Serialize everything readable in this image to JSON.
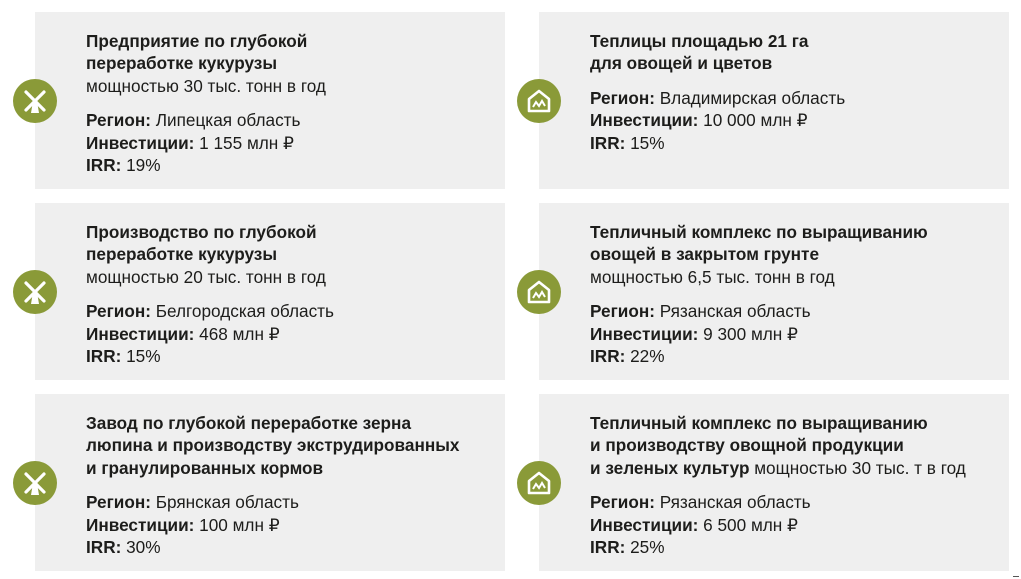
{
  "labels": {
    "region": "Регион:",
    "investment": "Инвестиции:",
    "irr": "IRR:"
  },
  "icons": {
    "mill": "windmill-icon",
    "greenhouse": "greenhouse-icon"
  },
  "colors": {
    "accent": "#8a9a38",
    "card_bg": "#efefef"
  },
  "projects": [
    {
      "icon": "windmill-icon",
      "title": "Предприятие по глубокой переработке кукурузы",
      "capacity": "мощностью 30 тыс. тонн в год",
      "region": "Липецкая область",
      "investment": "1 155 млн ₽",
      "irr": "19%"
    },
    {
      "icon": "greenhouse-icon",
      "title": "Теплицы площадью 21 га для овощей и цветов",
      "capacity": "",
      "region": "Владимирская область",
      "investment": "10 000 млн ₽",
      "irr": "15%"
    },
    {
      "icon": "windmill-icon",
      "title": "Производство по глубокой переработке кукурузы",
      "capacity": "мощностью 20 тыс. тонн в год",
      "region": "Белгородская область",
      "investment": "468 млн ₽",
      "irr": "15%"
    },
    {
      "icon": "greenhouse-icon",
      "title": "Тепличный комплекс по выращиванию овощей в закрытом грунте",
      "capacity": "мощностью 6,5 тыс. тонн в год",
      "region": "Рязанская область",
      "investment": "9 300 млн ₽",
      "irr": "22%"
    },
    {
      "icon": "windmill-icon",
      "title": "Завод по глубокой переработке зерна люпина и производству экструдированных и гранулированных кормов",
      "capacity": "",
      "region": "Брянская область",
      "investment": "100 млн ₽",
      "irr": "30%"
    },
    {
      "icon": "greenhouse-icon",
      "title": "Тепличный комплекс по выращиванию и производству овощной продукции и зеленых культур",
      "capacity": "мощностью 30 тыс. т в год",
      "region": "Рязанская область",
      "investment": "6 500 млн ₽",
      "irr": "25%"
    }
  ]
}
